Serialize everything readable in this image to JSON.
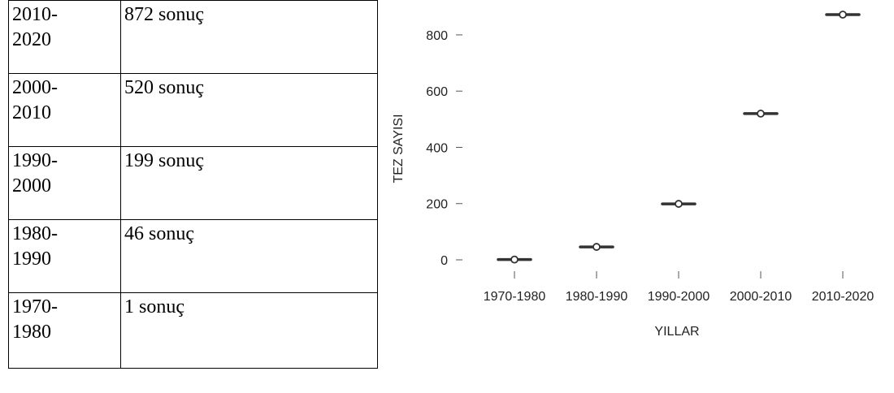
{
  "table": {
    "rows": [
      {
        "period_line1": "2010-",
        "period_line2": "2020",
        "count": "872 sonuç"
      },
      {
        "period_line1": "2000-",
        "period_line2": "2010",
        "count": "520 sonuç"
      },
      {
        "period_line1": "1990-",
        "period_line2": "2000",
        "count": "199 sonuç"
      },
      {
        "period_line1": "1980-",
        "period_line2": "1990",
        "count": "46 sonuç"
      },
      {
        "period_line1": "1970-",
        "period_line2": "1980",
        "count": "1 sonuç"
      }
    ]
  },
  "chart_data": {
    "type": "scatter",
    "categories": [
      "1970-1980",
      "1980-1990",
      "1990-2000",
      "2000-2010",
      "2010-2020"
    ],
    "values": [
      1,
      46,
      199,
      520,
      872
    ],
    "xlabel": "YILLAR",
    "ylabel": "TEZ SAYISI",
    "yticks": [
      0,
      200,
      400,
      600,
      800
    ],
    "ylim": [
      0,
      872
    ],
    "grid": false,
    "marker": "circle with horizontal bar",
    "colors": {
      "marker": "#333333",
      "axis": "#555555"
    }
  }
}
